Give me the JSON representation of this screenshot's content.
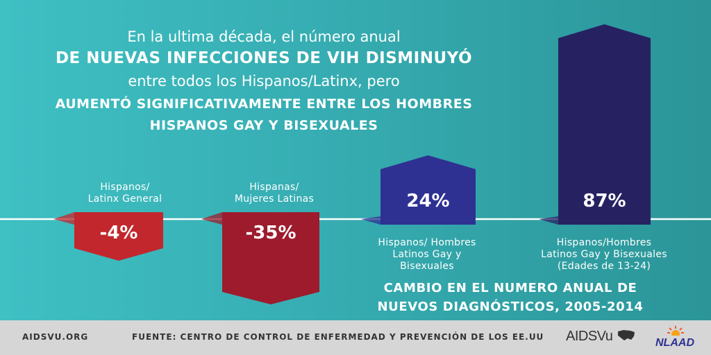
{
  "headline": {
    "line1": "En la ultima década, el número anual",
    "line2": "DE NUEVAS INFECCIONES DE VIH DISMINUYÓ",
    "line3": "entre todos los Hispanos/Latinx, pero",
    "line4": "AUMENTÓ SIGNIFICATIVAMENTE ENTRE LOS HOMBRES",
    "line5": "HISPANOS GAY Y BISEXUALES"
  },
  "chart_data": {
    "type": "bar",
    "categories": [
      "Hispanos/ Latinx General",
      "Hispanas/ Mujeres Latinas",
      "Hispanos/ Hombres Latinos Gay y Bisexuales",
      "Hispanos/Hombres Latinos Gay y Bisexuales (Edades de 13-24)"
    ],
    "values": [
      -4,
      -35,
      24,
      87
    ],
    "value_labels": [
      "-4%",
      "-35%",
      "24%",
      "87%"
    ],
    "title": "CAMBIO EN EL NUMERO ANUAL DE NUEVOS DIAGNÓSTICOS, 2005-2014",
    "colors": [
      "#c1272d",
      "#9e1b2e",
      "#2e3192",
      "#262262"
    ]
  },
  "labels": {
    "cat1": [
      "Hispanos/",
      "Latinx General"
    ],
    "cat2": [
      "Hispanas/",
      "Mujeres Latinas"
    ],
    "cat3": [
      "Hispanos/ Hombres",
      "Latinos Gay y",
      "Bisexuales"
    ],
    "cat4": [
      "Hispanos/Hombres",
      "Latinos Gay y Bisexuales",
      "(Edades de 13-24)"
    ]
  },
  "caption": {
    "line1": "CAMBIO EN EL NUMERO ANUAL DE",
    "line2": "NUEVOS DIAGNÓSTICOS, 2005-2014"
  },
  "footer": {
    "site": "AIDSVU.ORG",
    "source": "FUENTE: CENTRO DE CONTROL DE ENFERMEDAD Y PREVENCIÓN DE LOS EE.UU",
    "logo1": "AIDSVu",
    "logo2": "NLAAD"
  }
}
